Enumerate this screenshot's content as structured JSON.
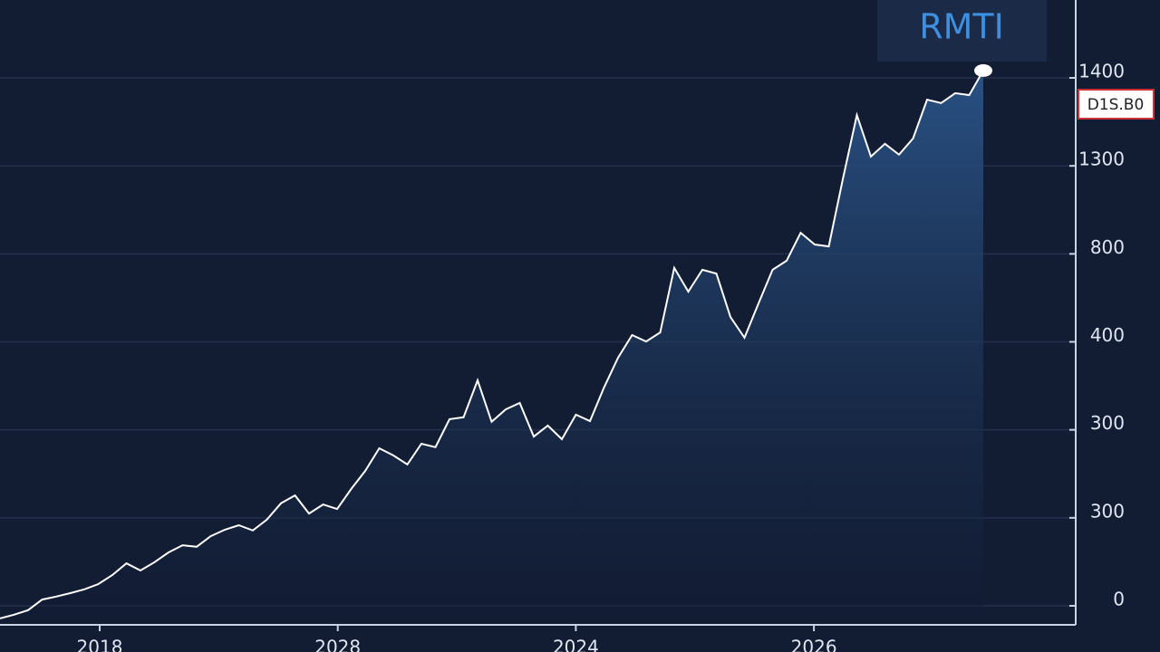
{
  "chart_data": {
    "type": "area",
    "title": "RMTI",
    "price_tag": "D1S.B0",
    "color": "#ffffff",
    "fill_top": "#2a5488",
    "ylim": [
      -65,
      1591
    ],
    "ytick_labels": [
      "0",
      "300",
      "300",
      "400",
      "800",
      "1300",
      "1400"
    ],
    "xtick_labels": [
      "2018",
      "2028",
      "2024",
      "2026"
    ],
    "grid": true,
    "values": [
      -48,
      -38,
      -26,
      2,
      10,
      19,
      29,
      43,
      67,
      98,
      79,
      101,
      127,
      146,
      142,
      170,
      187,
      199,
      185,
      214,
      257,
      278,
      230,
      254,
      242,
      295,
      343,
      403,
      384,
      360,
      415,
      406,
      480,
      485,
      583,
      473,
      506,
      523,
      434,
      463,
      427,
      492,
      475,
      564,
      643,
      703,
      686,
      710,
      881,
      818,
      876,
      866,
      751,
      696,
      787,
      876,
      900,
      974,
      943,
      938,
      1116,
      1286,
      1176,
      1210,
      1181,
      1224,
      1327,
      1318,
      1344,
      1339,
      1404
    ]
  }
}
